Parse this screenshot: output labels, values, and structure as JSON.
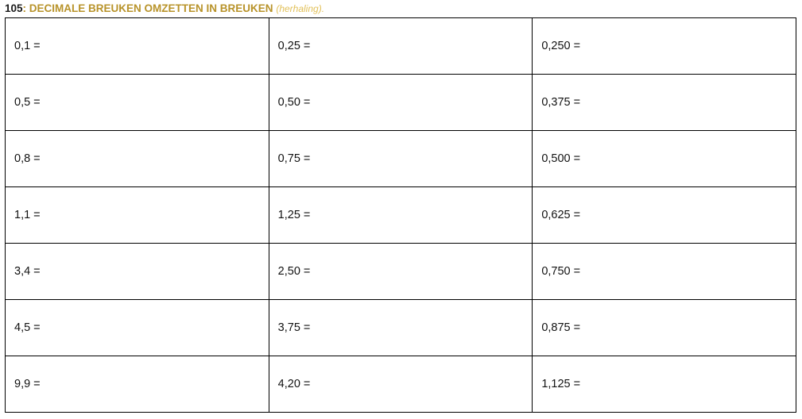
{
  "header": {
    "number": "105",
    "colon": ":",
    "title": "DECIMALE BREUKEN OMZETTEN IN BREUKEN",
    "subtitle": "(herhaling)."
  },
  "rows": [
    [
      "0,1 =",
      "0,25 =",
      "0,250 ="
    ],
    [
      "0,5 =",
      "0,50 =",
      "0,375 ="
    ],
    [
      "0,8 =",
      "0,75 =",
      "0,500 ="
    ],
    [
      "1,1 =",
      "1,25 =",
      "0,625 ="
    ],
    [
      "3,4 =",
      "2,50 =",
      "0,750 ="
    ],
    [
      "4,5 =",
      "3,75 =",
      "0,875 ="
    ],
    [
      "9,9 =",
      "4,20 =",
      "1,125 ="
    ]
  ],
  "colors": {
    "accent": "#b8932a",
    "subtitle": "#e2c15a",
    "border": "#000000"
  }
}
